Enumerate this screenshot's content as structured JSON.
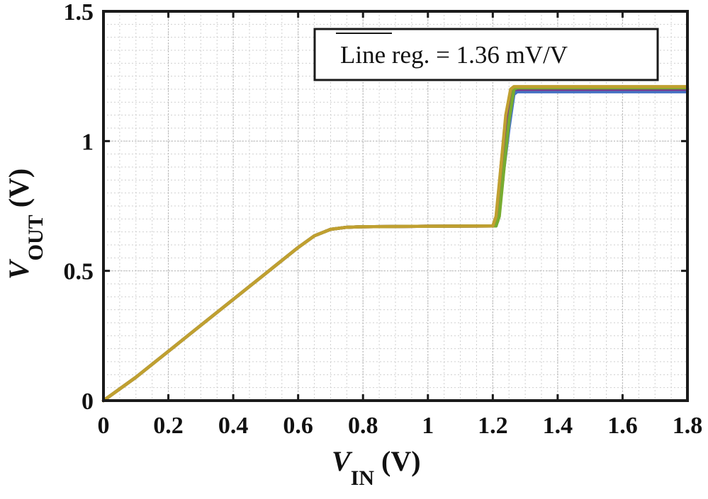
{
  "chart_data": {
    "type": "line",
    "x_label": {
      "main": "V",
      "sub": "IN",
      "unit": "(V)"
    },
    "y_label": {
      "main": "V",
      "sub": "OUT",
      "unit": "(V)"
    },
    "xlim": [
      0,
      1.8
    ],
    "ylim": [
      0,
      1.5
    ],
    "x_ticks": [
      "0",
      "0.2",
      "0.4",
      "0.6",
      "0.8",
      "1",
      "1.2",
      "1.4",
      "1.6",
      "1.8"
    ],
    "x_tick_values": [
      0,
      0.2,
      0.4,
      0.6,
      0.8,
      1.0,
      1.2,
      1.4,
      1.6,
      1.8
    ],
    "y_ticks": [
      "0",
      "0.5",
      "1",
      "1.5"
    ],
    "y_tick_values": [
      0,
      0.5,
      1.0,
      1.5
    ],
    "grid": true,
    "minor_grid": true,
    "legend_position": "top-right",
    "annotation": "Line reg. = 1.36 mV/V",
    "series": [
      {
        "color": "#4472c4",
        "x": [
          0,
          0.1,
          0.2,
          0.3,
          0.4,
          0.5,
          0.6,
          0.65,
          0.7,
          0.75,
          0.8,
          1.0,
          1.2,
          1.215,
          1.23,
          1.25,
          1.265,
          1.275,
          1.8
        ],
        "y": [
          0,
          0.09,
          0.19,
          0.29,
          0.39,
          0.49,
          0.59,
          0.635,
          0.66,
          0.668,
          0.67,
          0.672,
          0.673,
          0.69,
          0.85,
          1.05,
          1.18,
          1.19,
          1.19
        ]
      },
      {
        "color": "#d95319",
        "x": [
          0,
          0.1,
          0.2,
          0.3,
          0.4,
          0.5,
          0.6,
          0.65,
          0.7,
          0.75,
          0.8,
          1.0,
          1.205,
          1.215,
          1.225,
          1.24,
          1.255,
          1.265,
          1.8
        ],
        "y": [
          0,
          0.09,
          0.19,
          0.29,
          0.39,
          0.49,
          0.59,
          0.635,
          0.66,
          0.668,
          0.67,
          0.672,
          0.673,
          0.73,
          0.9,
          1.08,
          1.19,
          1.2,
          1.2
        ]
      },
      {
        "color": "#7e2f8e",
        "x": [
          0,
          0.1,
          0.2,
          0.3,
          0.4,
          0.5,
          0.6,
          0.65,
          0.7,
          0.75,
          0.8,
          1.0,
          1.21,
          1.22,
          1.23,
          1.245,
          1.26,
          1.27,
          1.8
        ],
        "y": [
          0,
          0.09,
          0.19,
          0.29,
          0.39,
          0.49,
          0.59,
          0.635,
          0.66,
          0.668,
          0.67,
          0.672,
          0.673,
          0.72,
          0.88,
          1.07,
          1.19,
          1.2,
          1.2
        ]
      },
      {
        "color": "#77ac30",
        "x": [
          0,
          0.1,
          0.2,
          0.3,
          0.4,
          0.5,
          0.6,
          0.65,
          0.7,
          0.75,
          0.8,
          1.0,
          1.21,
          1.22,
          1.235,
          1.25,
          1.265,
          1.275,
          1.8
        ],
        "y": [
          0,
          0.09,
          0.19,
          0.29,
          0.39,
          0.49,
          0.59,
          0.635,
          0.66,
          0.668,
          0.67,
          0.672,
          0.673,
          0.71,
          0.9,
          1.08,
          1.2,
          1.205,
          1.205
        ]
      },
      {
        "color": "#c0a030",
        "x": [
          0,
          0.1,
          0.2,
          0.3,
          0.4,
          0.5,
          0.6,
          0.65,
          0.7,
          0.75,
          0.8,
          1.0,
          1.2,
          1.21,
          1.225,
          1.24,
          1.255,
          1.265,
          1.8
        ],
        "y": [
          0,
          0.09,
          0.19,
          0.29,
          0.39,
          0.49,
          0.59,
          0.635,
          0.66,
          0.668,
          0.67,
          0.672,
          0.673,
          0.71,
          0.9,
          1.1,
          1.2,
          1.21,
          1.21
        ]
      }
    ]
  }
}
